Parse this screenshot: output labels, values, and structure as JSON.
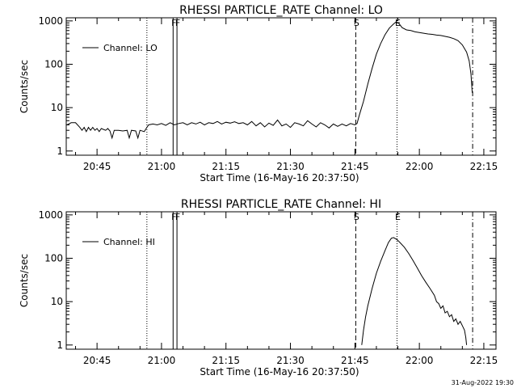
{
  "timestamp": "31-Aug-2022 19:30",
  "chart_data": [
    {
      "type": "line",
      "title": "RHESSI PARTICLE_RATE Channel: LO",
      "xlabel": "Start Time (16-May-16 20:37:50)",
      "ylabel": "Counts/sec",
      "yscale": "log",
      "ylim": [
        1,
        1000
      ],
      "xlim_minutes": [
        20.633,
        21.4
      ],
      "x_unit": "minutes after 20:00",
      "x_ticks": [
        {
          "label": "20:45",
          "t": 45
        },
        {
          "label": "21:00",
          "t": 60
        },
        {
          "label": "21:15",
          "t": 75
        },
        {
          "label": "21:30",
          "t": 90
        },
        {
          "label": "21:45",
          "t": 105
        },
        {
          "label": "22:00",
          "t": 120
        },
        {
          "label": "22:15",
          "t": 135
        }
      ],
      "y_ticks": [
        {
          "label": "1",
          "v": 1
        },
        {
          "label": "10",
          "v": 10
        },
        {
          "label": "100",
          "v": 100
        },
        {
          "label": "1000",
          "v": 1000
        }
      ],
      "legend": {
        "label": "Channel: LO",
        "position": "top-left"
      },
      "markers": [
        {
          "label": "",
          "t": 56.6,
          "style": "dotted"
        },
        {
          "label": "F",
          "t": 62.7,
          "style": "solid"
        },
        {
          "label": "F",
          "t": 63.6,
          "style": "solid"
        },
        {
          "label": "S",
          "t": 105.2,
          "style": "dashed"
        },
        {
          "label": "E",
          "t": 114.8,
          "style": "dotted"
        },
        {
          "label": "",
          "t": 132.4,
          "style": "dashdot"
        }
      ],
      "series": [
        {
          "name": "Channel: LO",
          "points": [
            [
              38.0,
              4
            ],
            [
              39.0,
              4.5
            ],
            [
              40.0,
              4.5
            ],
            [
              41.0,
              3.5
            ],
            [
              41.5,
              3.0
            ],
            [
              42.0,
              3.5
            ],
            [
              42.5,
              2.8
            ],
            [
              43.0,
              3.5
            ],
            [
              43.5,
              3.0
            ],
            [
              44.0,
              3.5
            ],
            [
              44.5,
              3.0
            ],
            [
              45.0,
              3.3
            ],
            [
              45.5,
              2.8
            ],
            [
              46.0,
              3.3
            ],
            [
              47.0,
              3.0
            ],
            [
              47.5,
              3.3
            ],
            [
              48.0,
              2.9
            ],
            [
              48.5,
              2.0
            ],
            [
              49.0,
              3.0
            ],
            [
              50.0,
              3.0
            ],
            [
              51.0,
              2.9
            ],
            [
              52.0,
              3.0
            ],
            [
              52.5,
              2.0
            ],
            [
              53.0,
              3.0
            ],
            [
              54.0,
              2.9
            ],
            [
              54.5,
              2.0
            ],
            [
              55.0,
              3.0
            ],
            [
              56.0,
              2.8
            ],
            [
              56.6,
              3.5
            ],
            [
              57.0,
              4.0
            ],
            [
              58.0,
              4.2
            ],
            [
              59.0,
              4.0
            ],
            [
              60.0,
              4.3
            ],
            [
              61.0,
              3.9
            ],
            [
              62.0,
              4.5
            ],
            [
              63.0,
              4.0
            ],
            [
              64.0,
              4.3
            ],
            [
              65.0,
              4.5
            ],
            [
              66.0,
              4.0
            ],
            [
              67.0,
              4.5
            ],
            [
              68.0,
              4.2
            ],
            [
              69.0,
              4.6
            ],
            [
              70.0,
              4.0
            ],
            [
              71.0,
              4.5
            ],
            [
              72.0,
              4.3
            ],
            [
              73.0,
              4.8
            ],
            [
              74.0,
              4.2
            ],
            [
              75.0,
              4.6
            ],
            [
              76.0,
              4.4
            ],
            [
              77.0,
              4.7
            ],
            [
              78.0,
              4.3
            ],
            [
              79.0,
              4.5
            ],
            [
              80.0,
              4.0
            ],
            [
              81.0,
              4.8
            ],
            [
              82.0,
              3.8
            ],
            [
              83.0,
              4.5
            ],
            [
              84.0,
              3.6
            ],
            [
              85.0,
              4.4
            ],
            [
              86.0,
              3.9
            ],
            [
              87.0,
              5.2
            ],
            [
              88.0,
              3.8
            ],
            [
              89.0,
              4.2
            ],
            [
              90.0,
              3.5
            ],
            [
              91.0,
              4.5
            ],
            [
              92.0,
              4.2
            ],
            [
              93.0,
              3.8
            ],
            [
              94.0,
              5.0
            ],
            [
              95.0,
              4.2
            ],
            [
              96.0,
              3.6
            ],
            [
              97.0,
              4.5
            ],
            [
              98.0,
              4.0
            ],
            [
              99.0,
              3.4
            ],
            [
              100.0,
              4.2
            ],
            [
              101.0,
              3.7
            ],
            [
              102.0,
              4.2
            ],
            [
              103.0,
              3.8
            ],
            [
              104.0,
              4.3
            ],
            [
              105.0,
              4.0
            ],
            [
              105.5,
              4.3
            ],
            [
              106.0,
              6.5
            ],
            [
              107.0,
              14
            ],
            [
              108.0,
              35
            ],
            [
              109.0,
              80
            ],
            [
              110.0,
              170
            ],
            [
              111.0,
              300
            ],
            [
              112.0,
              480
            ],
            [
              113.0,
              680
            ],
            [
              114.0,
              850
            ],
            [
              114.6,
              950
            ],
            [
              115.2,
              880
            ],
            [
              116.0,
              700
            ],
            [
              117.0,
              620
            ],
            [
              118.0,
              600
            ],
            [
              119.0,
              560
            ],
            [
              120.0,
              540
            ],
            [
              121.0,
              520
            ],
            [
              122.0,
              500
            ],
            [
              123.0,
              490
            ],
            [
              124.0,
              470
            ],
            [
              125.0,
              460
            ],
            [
              126.0,
              440
            ],
            [
              127.0,
              420
            ],
            [
              128.0,
              390
            ],
            [
              129.0,
              350
            ],
            [
              130.0,
              280
            ],
            [
              131.0,
              190
            ],
            [
              131.6,
              120
            ],
            [
              132.0,
              60
            ],
            [
              132.3,
              22
            ]
          ]
        }
      ]
    },
    {
      "type": "line",
      "title": "RHESSI PARTICLE_RATE Channel: HI",
      "xlabel": "Start Time (16-May-16 20:37:50)",
      "ylabel": "Counts/sec",
      "yscale": "log",
      "ylim": [
        1,
        1000
      ],
      "x_unit": "minutes after 20:00",
      "x_ticks": [
        {
          "label": "20:45",
          "t": 45
        },
        {
          "label": "21:00",
          "t": 60
        },
        {
          "label": "21:15",
          "t": 75
        },
        {
          "label": "21:30",
          "t": 90
        },
        {
          "label": "21:45",
          "t": 105
        },
        {
          "label": "22:00",
          "t": 120
        },
        {
          "label": "22:15",
          "t": 135
        }
      ],
      "y_ticks": [
        {
          "label": "1",
          "v": 1
        },
        {
          "label": "10",
          "v": 10
        },
        {
          "label": "100",
          "v": 100
        },
        {
          "label": "1000",
          "v": 1000
        }
      ],
      "legend": {
        "label": "Channel: HI",
        "position": "top-left"
      },
      "markers": [
        {
          "label": "",
          "t": 56.6,
          "style": "dotted"
        },
        {
          "label": "F",
          "t": 62.7,
          "style": "solid"
        },
        {
          "label": "F",
          "t": 63.6,
          "style": "solid"
        },
        {
          "label": "S",
          "t": 105.2,
          "style": "dashed"
        },
        {
          "label": "E",
          "t": 114.8,
          "style": "dotted"
        },
        {
          "label": "",
          "t": 132.4,
          "style": "dashdot"
        }
      ],
      "series": [
        {
          "name": "Channel: HI",
          "points": [
            [
              106.6,
              1.0
            ],
            [
              107.0,
              2.2
            ],
            [
              107.5,
              4.5
            ],
            [
              108.0,
              8
            ],
            [
              109.0,
              20
            ],
            [
              110.0,
              45
            ],
            [
              111.0,
              85
            ],
            [
              112.0,
              150
            ],
            [
              112.8,
              230
            ],
            [
              113.5,
              290
            ],
            [
              114.0,
              300
            ],
            [
              114.8,
              270
            ],
            [
              115.5,
              230
            ],
            [
              116.5,
              180
            ],
            [
              117.5,
              130
            ],
            [
              118.5,
              90
            ],
            [
              119.5,
              60
            ],
            [
              120.5,
              40
            ],
            [
              121.5,
              28
            ],
            [
              122.5,
              20
            ],
            [
              123.5,
              14
            ],
            [
              124.0,
              10
            ],
            [
              124.5,
              9
            ],
            [
              125.0,
              7
            ],
            [
              125.5,
              8
            ],
            [
              126.0,
              5.5
            ],
            [
              126.5,
              6
            ],
            [
              127.0,
              4.5
            ],
            [
              127.5,
              5
            ],
            [
              128.0,
              3.5
            ],
            [
              128.5,
              4
            ],
            [
              129.0,
              3
            ],
            [
              129.5,
              3.5
            ],
            [
              130.0,
              2.8
            ],
            [
              130.5,
              2.2
            ],
            [
              130.8,
              1.5
            ],
            [
              131.0,
              1.0
            ]
          ]
        }
      ]
    }
  ]
}
